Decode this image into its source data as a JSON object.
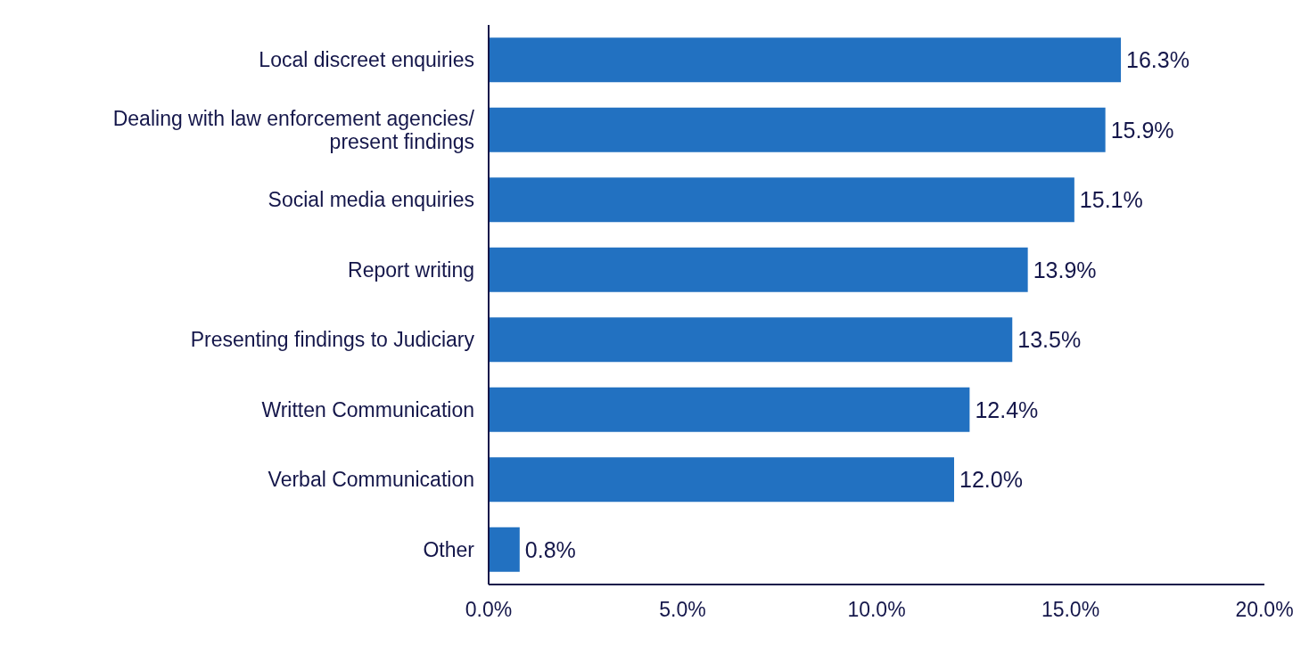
{
  "chart_data": {
    "type": "bar",
    "orientation": "horizontal",
    "categories": [
      "Local discreet enquiries",
      "Dealing with law enforcement agencies/ present findings",
      "Social media enquiries",
      "Report writing",
      "Presenting findings to Judiciary",
      "Written Communication",
      "Verbal Communication",
      "Other"
    ],
    "values": [
      16.3,
      15.9,
      15.1,
      13.9,
      13.5,
      12.4,
      12.0,
      0.8
    ],
    "value_labels": [
      "16.3%",
      "15.9%",
      "15.1%",
      "13.9%",
      "13.5%",
      "12.4%",
      "12.0%",
      "0.8%"
    ],
    "color": "#2271c1",
    "xlim": [
      0,
      20
    ],
    "xticks": [
      {
        "value": 0,
        "label": "0.0%"
      },
      {
        "value": 5,
        "label": "5.0%"
      },
      {
        "value": 10,
        "label": "10.0%"
      },
      {
        "value": 15,
        "label": "15.0%"
      },
      {
        "value": 20,
        "label": "20.0%"
      }
    ],
    "grid": false,
    "legend": false
  }
}
